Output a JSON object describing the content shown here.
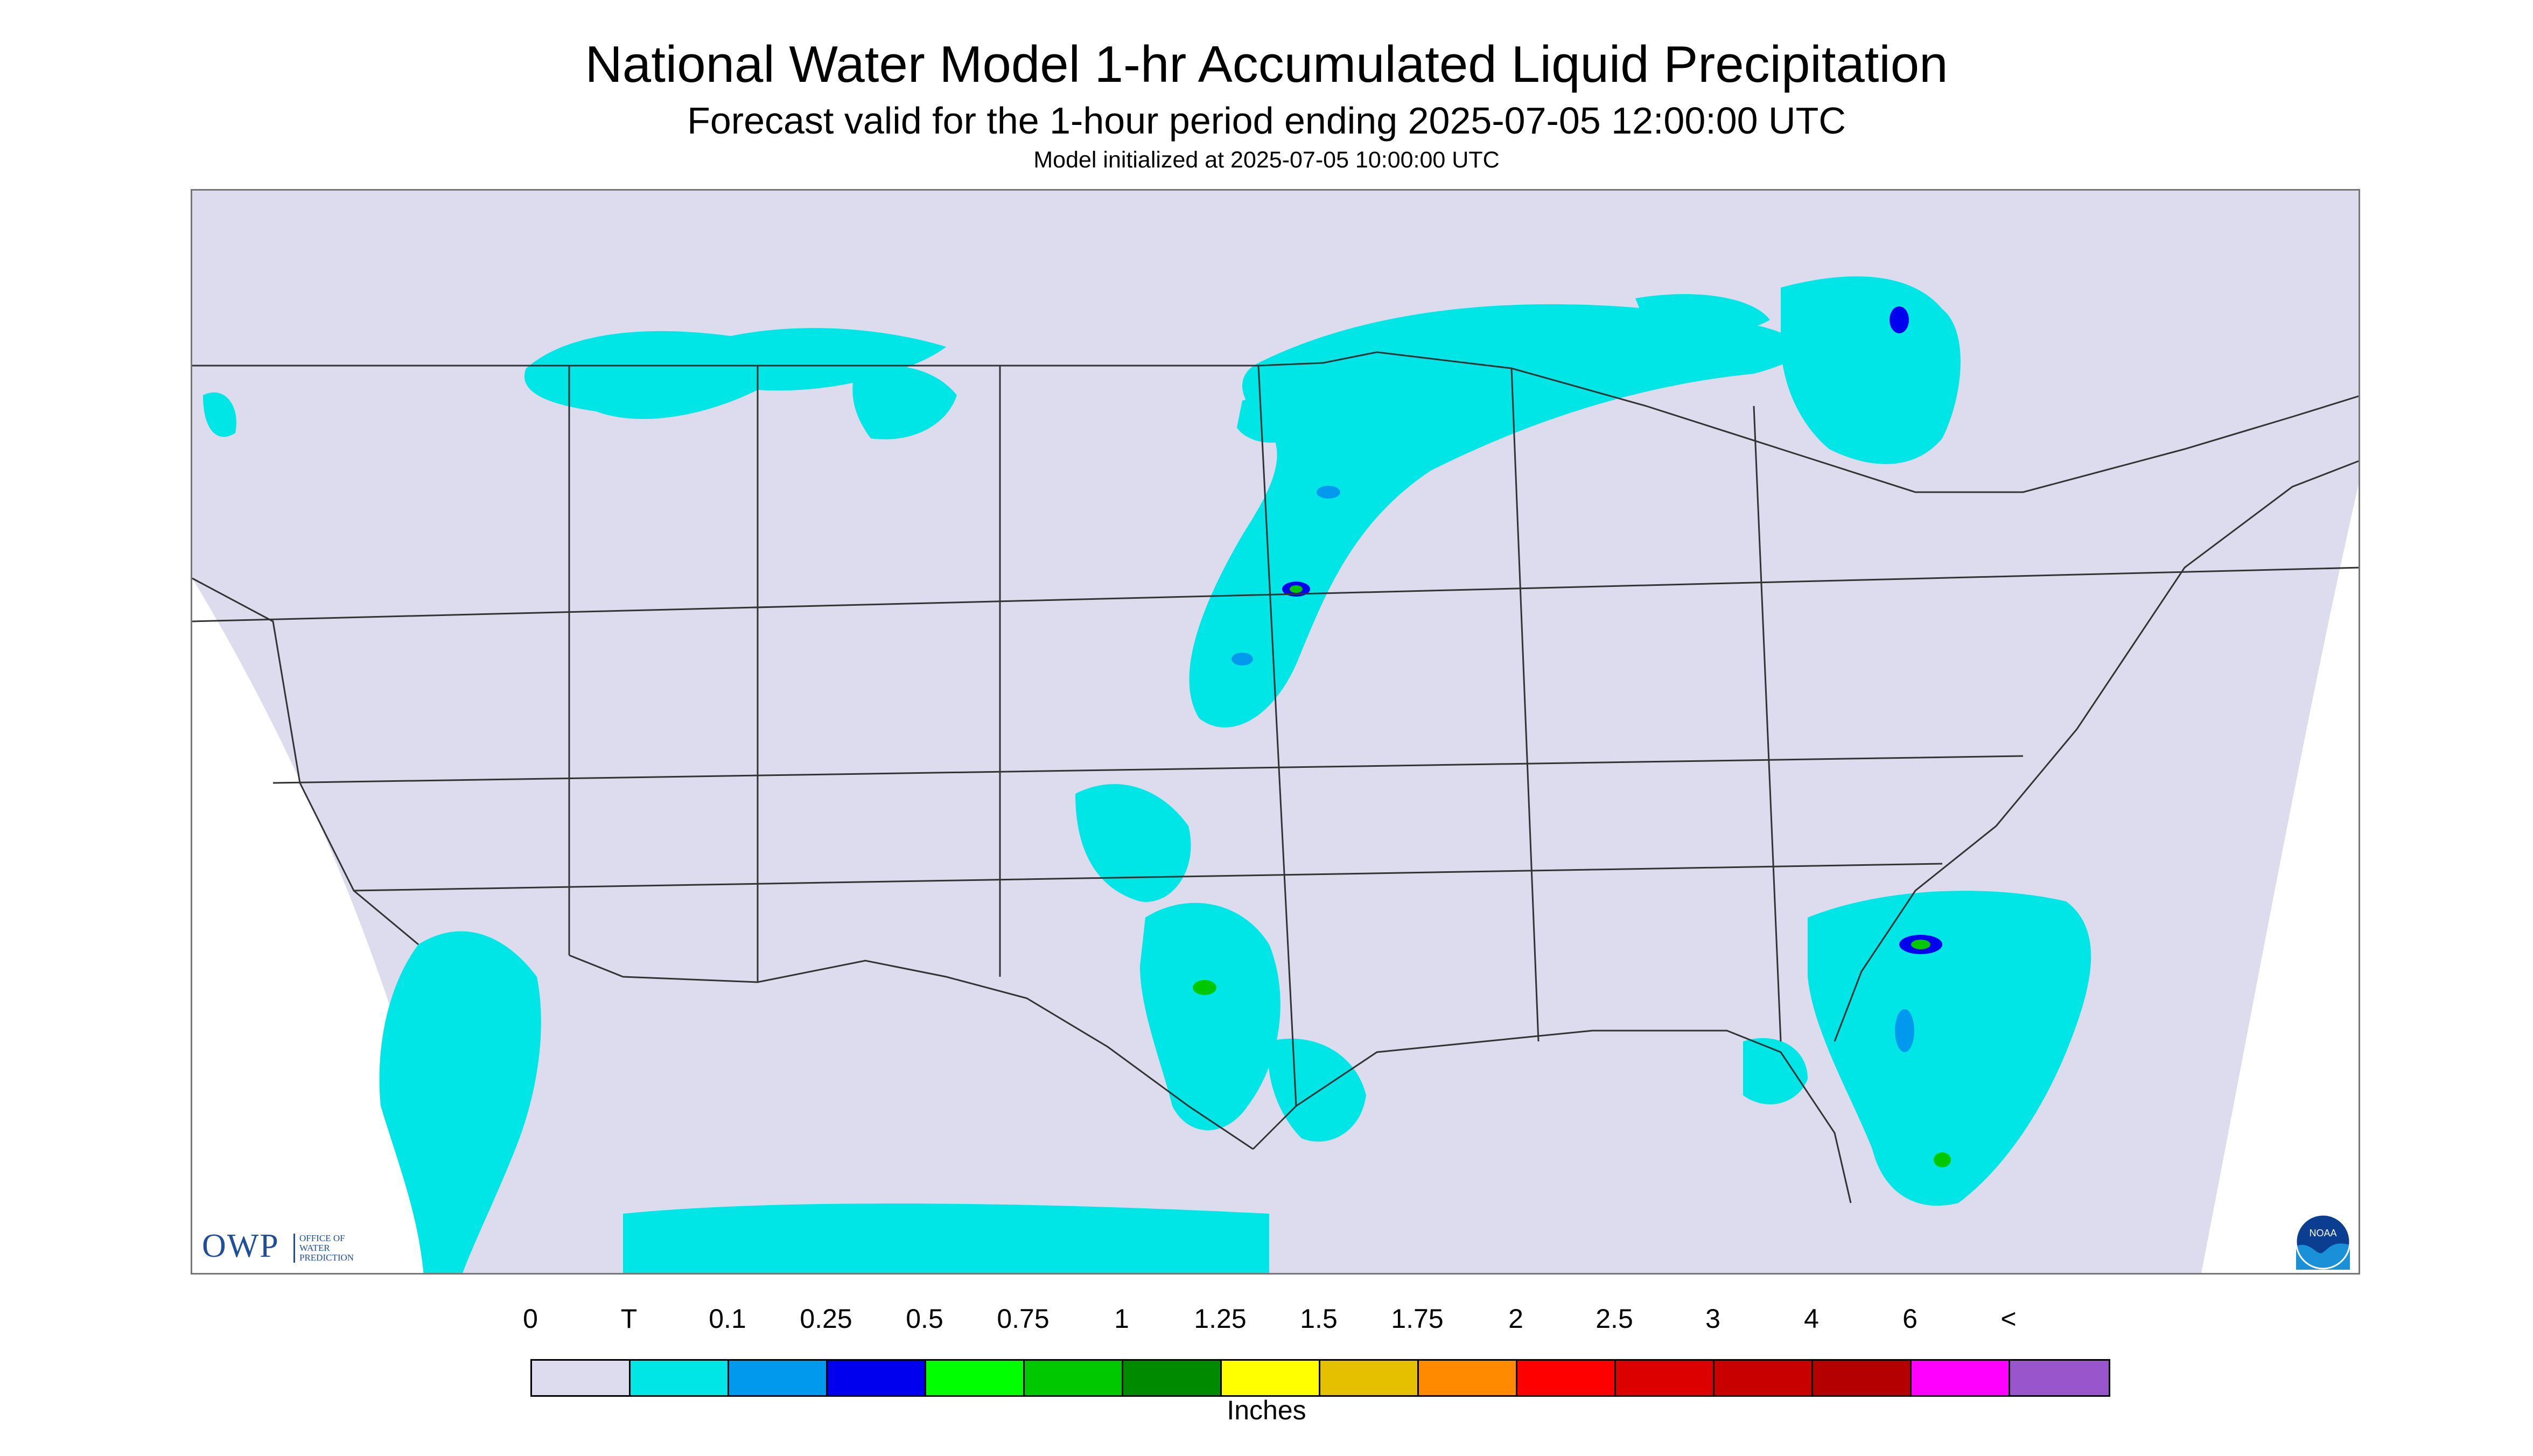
{
  "header": {
    "title": "National Water Model 1-hr Accumulated Liquid Precipitation",
    "subtitle": "Forecast valid for the 1-hour period ending 2025-07-05 12:00:00 UTC",
    "init": "Model initialized at 2025-07-05 10:00:00 UTC"
  },
  "map": {
    "background_color": "#dcdcee",
    "outside_color": "#ffffff",
    "boundary_color": "#333333"
  },
  "logos": {
    "owp_text": "OWP",
    "owp_sub_1": "OFFICE OF",
    "owp_sub_2": "WATER",
    "owp_sub_3": "PREDICTION",
    "noaa_text": "NOAA"
  },
  "legend": {
    "labels": [
      "0",
      "T",
      "0.1",
      "0.25",
      "0.5",
      "0.75",
      "1",
      "1.25",
      "1.5",
      "1.75",
      "2",
      "2.5",
      "3",
      "4",
      "6",
      "<"
    ],
    "colors": [
      "#dcdcee",
      "#00e5e5",
      "#0099ee",
      "#0000ee",
      "#00ff00",
      "#00c800",
      "#008a00",
      "#ffff00",
      "#e5c000",
      "#ff8a00",
      "#ff0000",
      "#dc0000",
      "#c80000",
      "#b40000",
      "#ff00ff",
      "#9955cc"
    ],
    "units": "Inches"
  }
}
